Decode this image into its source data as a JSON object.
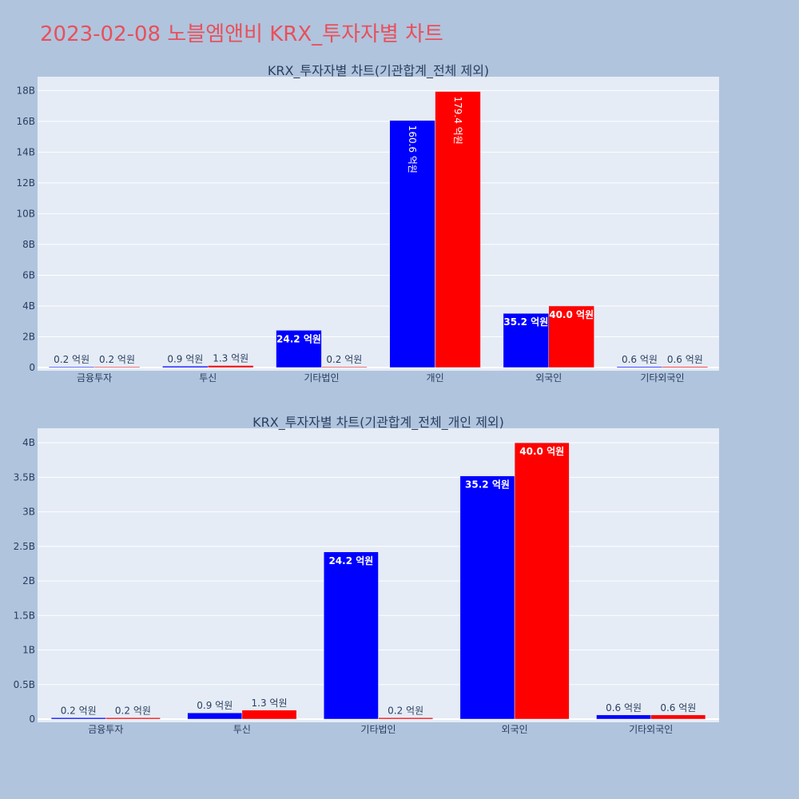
{
  "page": {
    "title": "2023-02-08 노블엠앤비 KRX_투자자별 차트"
  },
  "colors": {
    "buy": "#0000ff",
    "sell": "#ff0000",
    "plot_bg": "#e5ecf6",
    "page_bg": "#b0c4de",
    "title": "#e8505b"
  },
  "chart_data": [
    {
      "type": "bar",
      "title": "KRX_투자자별 차트(기관합계_전체 제외)",
      "categories": [
        "금융투자",
        "투신",
        "기타법인",
        "개인",
        "외국인",
        "기타외국인"
      ],
      "series": [
        {
          "values": [
            0.02,
            0.09,
            2.42,
            16.06,
            3.52,
            0.06
          ],
          "labels": [
            "0.2 억원",
            "0.9 억원",
            "24.2 억원",
            "160.6 억원",
            "35.2 억원",
            "0.6 억원"
          ]
        },
        {
          "values": [
            0.02,
            0.13,
            0.02,
            17.94,
            4.0,
            0.06
          ],
          "labels": [
            "0.2 억원",
            "1.3 억원",
            "0.2 억원",
            "179.4 억원",
            "40.0 억원",
            "0.6 억원"
          ]
        }
      ],
      "ylim": [
        0,
        18.9
      ],
      "yticks": [
        0,
        2,
        4,
        6,
        8,
        10,
        12,
        14,
        16,
        18
      ],
      "ytick_labels": [
        "0",
        "2B",
        "4B",
        "6B",
        "8B",
        "10B",
        "12B",
        "14B",
        "16B",
        "18B"
      ],
      "grid": true,
      "legend": "none"
    },
    {
      "type": "bar",
      "title": "KRX_투자자별 차트(기관합계_전체_개인 제외)",
      "categories": [
        "금융투자",
        "투신",
        "기타법인",
        "외국인",
        "기타외국인"
      ],
      "series": [
        {
          "values": [
            0.02,
            0.09,
            2.42,
            3.52,
            0.06
          ],
          "labels": [
            "0.2 억원",
            "0.9 억원",
            "24.2 억원",
            "35.2 억원",
            "0.6 억원"
          ]
        },
        {
          "values": [
            0.02,
            0.13,
            0.02,
            4.0,
            0.06
          ],
          "labels": [
            "0.2 억원",
            "1.3 억원",
            "0.2 억원",
            "40.0 억원",
            "0.6 억원"
          ]
        }
      ],
      "ylim": [
        0,
        4.21
      ],
      "yticks": [
        0,
        0.5,
        1,
        1.5,
        2,
        2.5,
        3,
        3.5,
        4
      ],
      "ytick_labels": [
        "0",
        "0.5B",
        "1B",
        "1.5B",
        "2B",
        "2.5B",
        "3B",
        "3.5B",
        "4B"
      ],
      "grid": true,
      "legend": "none"
    }
  ]
}
